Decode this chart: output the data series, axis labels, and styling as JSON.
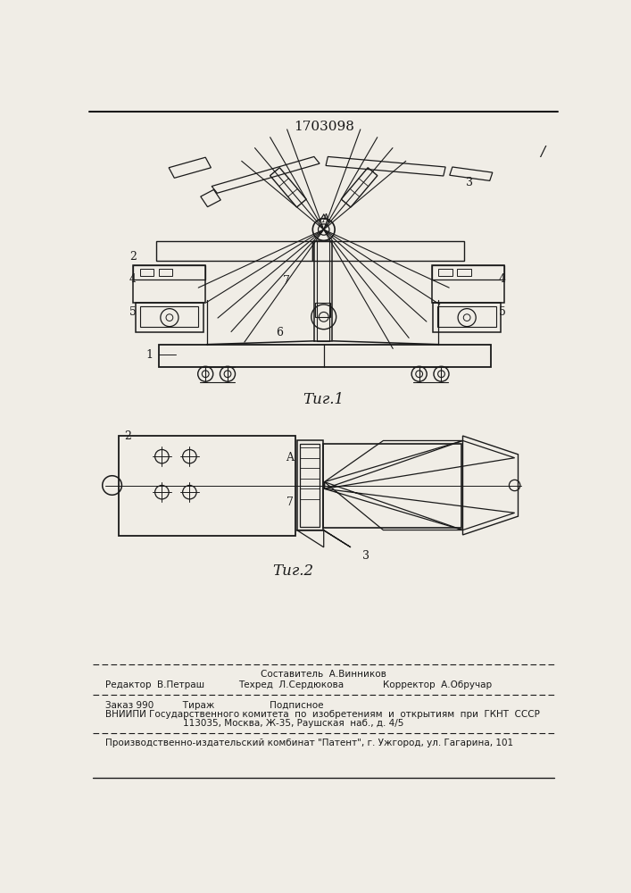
{
  "patent_number": "1703098",
  "background_color": "#f0ede6",
  "line_color": "#1a1a1a",
  "fig1_caption": "Τиг.1",
  "fig2_caption": "Τиг.2",
  "editor_line": "Редактор  В.Петраш",
  "composer_line": "Составитель  А.Винников",
  "techred_line": "Техред  Л.Сердюкова",
  "corrector_line": "Корректор  А.Обручар",
  "order_line": "Заказ 990          Тираж                   Подписное",
  "vnipi_line": "ВНИИПИ Государственного комитета  по  изобретениям  и  открытиям  при  ГКНТ  СССР",
  "address_line": "113035, Москва, Ж-35, Раушская  наб., д. 4/5",
  "factory_line": "Производственно-издательский комбинат \"Патент\", г. Ужгород, ул. Гагарина, 101"
}
